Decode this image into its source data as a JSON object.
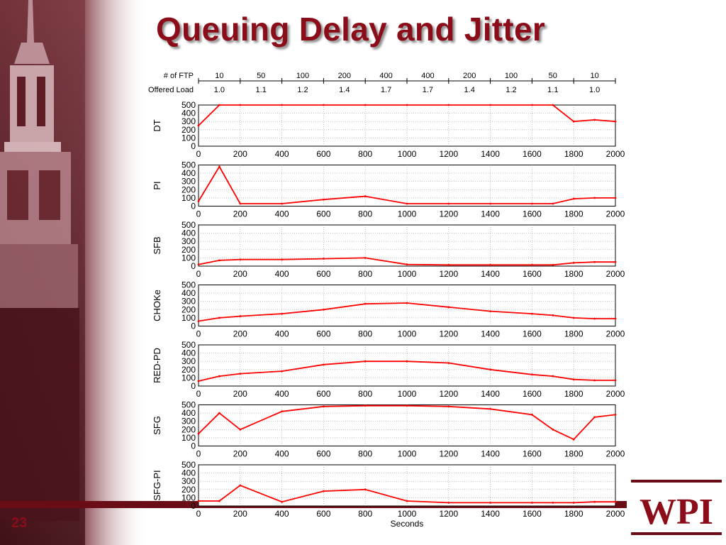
{
  "slide": {
    "title": "Queuing Delay and Jitter",
    "number": "23"
  },
  "logo": {
    "text": "WPI"
  },
  "chart_data": {
    "type": "line",
    "xlabel": "Seconds",
    "xlim": [
      0,
      2000
    ],
    "ylim": [
      0,
      500
    ],
    "x_ticks": [
      0,
      200,
      400,
      600,
      800,
      1000,
      1200,
      1400,
      1600,
      1800,
      2000
    ],
    "y_ticks": [
      0,
      100,
      200,
      300,
      400,
      500
    ],
    "grid": true,
    "line_color": "#ff0000",
    "header_rows": [
      {
        "label": "# of FTP",
        "values": [
          "10",
          "50",
          "100",
          "200",
          "400",
          "400",
          "200",
          "100",
          "50",
          "10"
        ]
      },
      {
        "label": "Offered Load",
        "values": [
          "1.0",
          "1.1",
          "1.2",
          "1.4",
          "1.7",
          "1.7",
          "1.4",
          "1.2",
          "1.1",
          "1.0"
        ]
      }
    ],
    "panels": [
      {
        "name": "DT",
        "x": [
          0,
          100,
          200,
          400,
          600,
          800,
          1000,
          1200,
          1400,
          1600,
          1700,
          1800,
          1900,
          2000
        ],
        "y": [
          250,
          500,
          500,
          500,
          500,
          500,
          500,
          500,
          500,
          500,
          500,
          300,
          320,
          300
        ]
      },
      {
        "name": "PI",
        "x": [
          0,
          100,
          200,
          400,
          600,
          800,
          1000,
          1200,
          1400,
          1600,
          1700,
          1800,
          1900,
          2000
        ],
        "y": [
          60,
          480,
          30,
          30,
          80,
          120,
          30,
          30,
          30,
          30,
          30,
          90,
          100,
          100
        ]
      },
      {
        "name": "SFB",
        "x": [
          0,
          100,
          200,
          400,
          600,
          800,
          1000,
          1200,
          1400,
          1600,
          1700,
          1800,
          1900,
          2000
        ],
        "y": [
          20,
          70,
          80,
          80,
          90,
          100,
          20,
          15,
          15,
          15,
          15,
          40,
          50,
          50
        ]
      },
      {
        "name": "CHOKe",
        "x": [
          0,
          100,
          200,
          400,
          600,
          800,
          1000,
          1200,
          1400,
          1600,
          1700,
          1800,
          1900,
          2000
        ],
        "y": [
          60,
          100,
          120,
          150,
          200,
          270,
          280,
          230,
          180,
          150,
          130,
          100,
          90,
          90
        ]
      },
      {
        "name": "RED-PD",
        "x": [
          0,
          100,
          200,
          400,
          600,
          800,
          1000,
          1200,
          1400,
          1600,
          1700,
          1800,
          1900,
          2000
        ],
        "y": [
          60,
          120,
          150,
          180,
          260,
          300,
          300,
          280,
          200,
          140,
          120,
          80,
          70,
          70
        ]
      },
      {
        "name": "SFG",
        "x": [
          0,
          100,
          200,
          400,
          600,
          800,
          1000,
          1200,
          1400,
          1600,
          1700,
          1800,
          1900,
          2000
        ],
        "y": [
          150,
          400,
          200,
          420,
          480,
          490,
          490,
          480,
          450,
          380,
          200,
          80,
          350,
          380
        ]
      },
      {
        "name": "SFG-PI",
        "x": [
          0,
          100,
          200,
          400,
          600,
          800,
          1000,
          1200,
          1400,
          1600,
          1700,
          1800,
          1900,
          2000
        ],
        "y": [
          60,
          60,
          250,
          50,
          180,
          200,
          60,
          40,
          40,
          40,
          40,
          40,
          50,
          50
        ]
      }
    ]
  }
}
